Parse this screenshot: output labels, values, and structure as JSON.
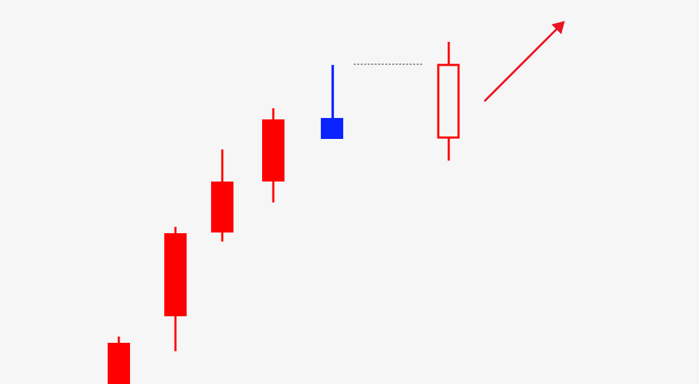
{
  "colors": {
    "background": "#f6f6f6",
    "bullish_candle": "#ff0000",
    "highlight_candle": "#0a23ff",
    "dashed_line": "#333333",
    "arrow": "#ee1122"
  },
  "icons": {
    "trend_arrow": "arrow-up-right-icon"
  }
}
